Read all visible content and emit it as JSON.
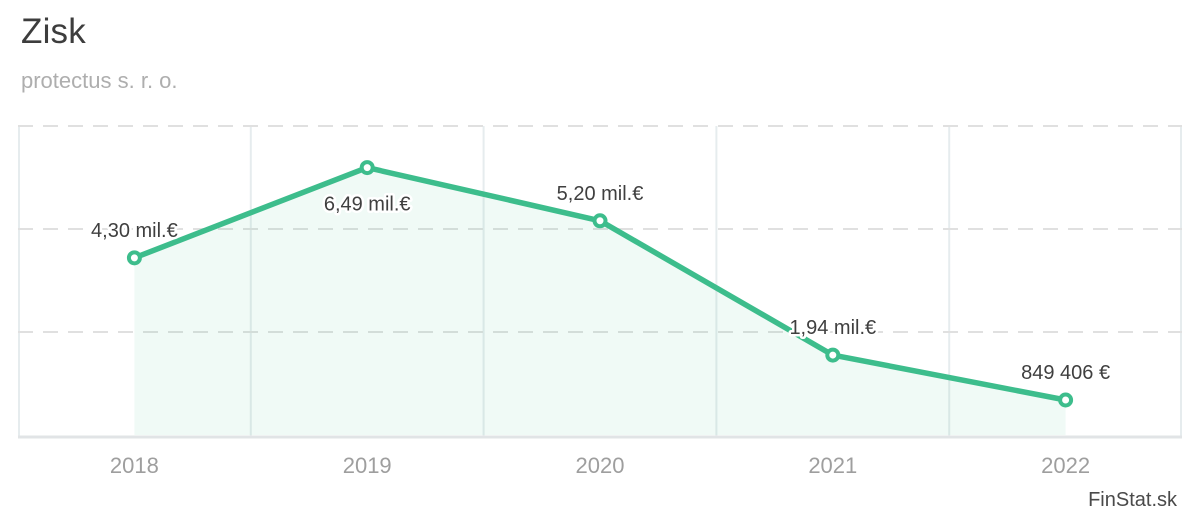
{
  "header": {
    "title": "Zisk",
    "subtitle": "protectus s. r. o."
  },
  "watermark": {
    "label": "FinStat.sk"
  },
  "colors": {
    "line": "#3dbd8c",
    "marker_fill": "#ffffff",
    "area_fill": "rgba(61, 189, 140, 0.08)",
    "grid_dashed": "#e0e0e0",
    "grid_vertical": "#e6ecee",
    "axis_line": "#e1e4e6",
    "data_label": "#3f3f3f",
    "x_label": "#9e9e9e"
  },
  "chart_data": {
    "type": "area",
    "title": "Zisk",
    "subtitle": "protectus s. r. o.",
    "categories": [
      "2018",
      "2019",
      "2020",
      "2021",
      "2022"
    ],
    "series": [
      {
        "name": "Zisk",
        "values": [
          4300000,
          6490000,
          5200000,
          1940000,
          849406
        ],
        "unit": "EUR"
      }
    ],
    "data_labels": [
      "4,30 mil.€",
      "6,49 mil.€",
      "5,20 mil.€",
      "1,94 mil.€",
      "849 406 €"
    ],
    "label_placement": [
      "above",
      "below",
      "above",
      "above",
      "above"
    ],
    "xlabel": "",
    "ylabel": "",
    "ylim": [
      0,
      7500000
    ],
    "y_gridlines": [
      2500000,
      5000000,
      7500000
    ],
    "y_tick_labels": "hidden",
    "grid": {
      "horizontal": "dashed",
      "vertical": "solid"
    },
    "legend": "none",
    "marker_style": "open-circle"
  }
}
